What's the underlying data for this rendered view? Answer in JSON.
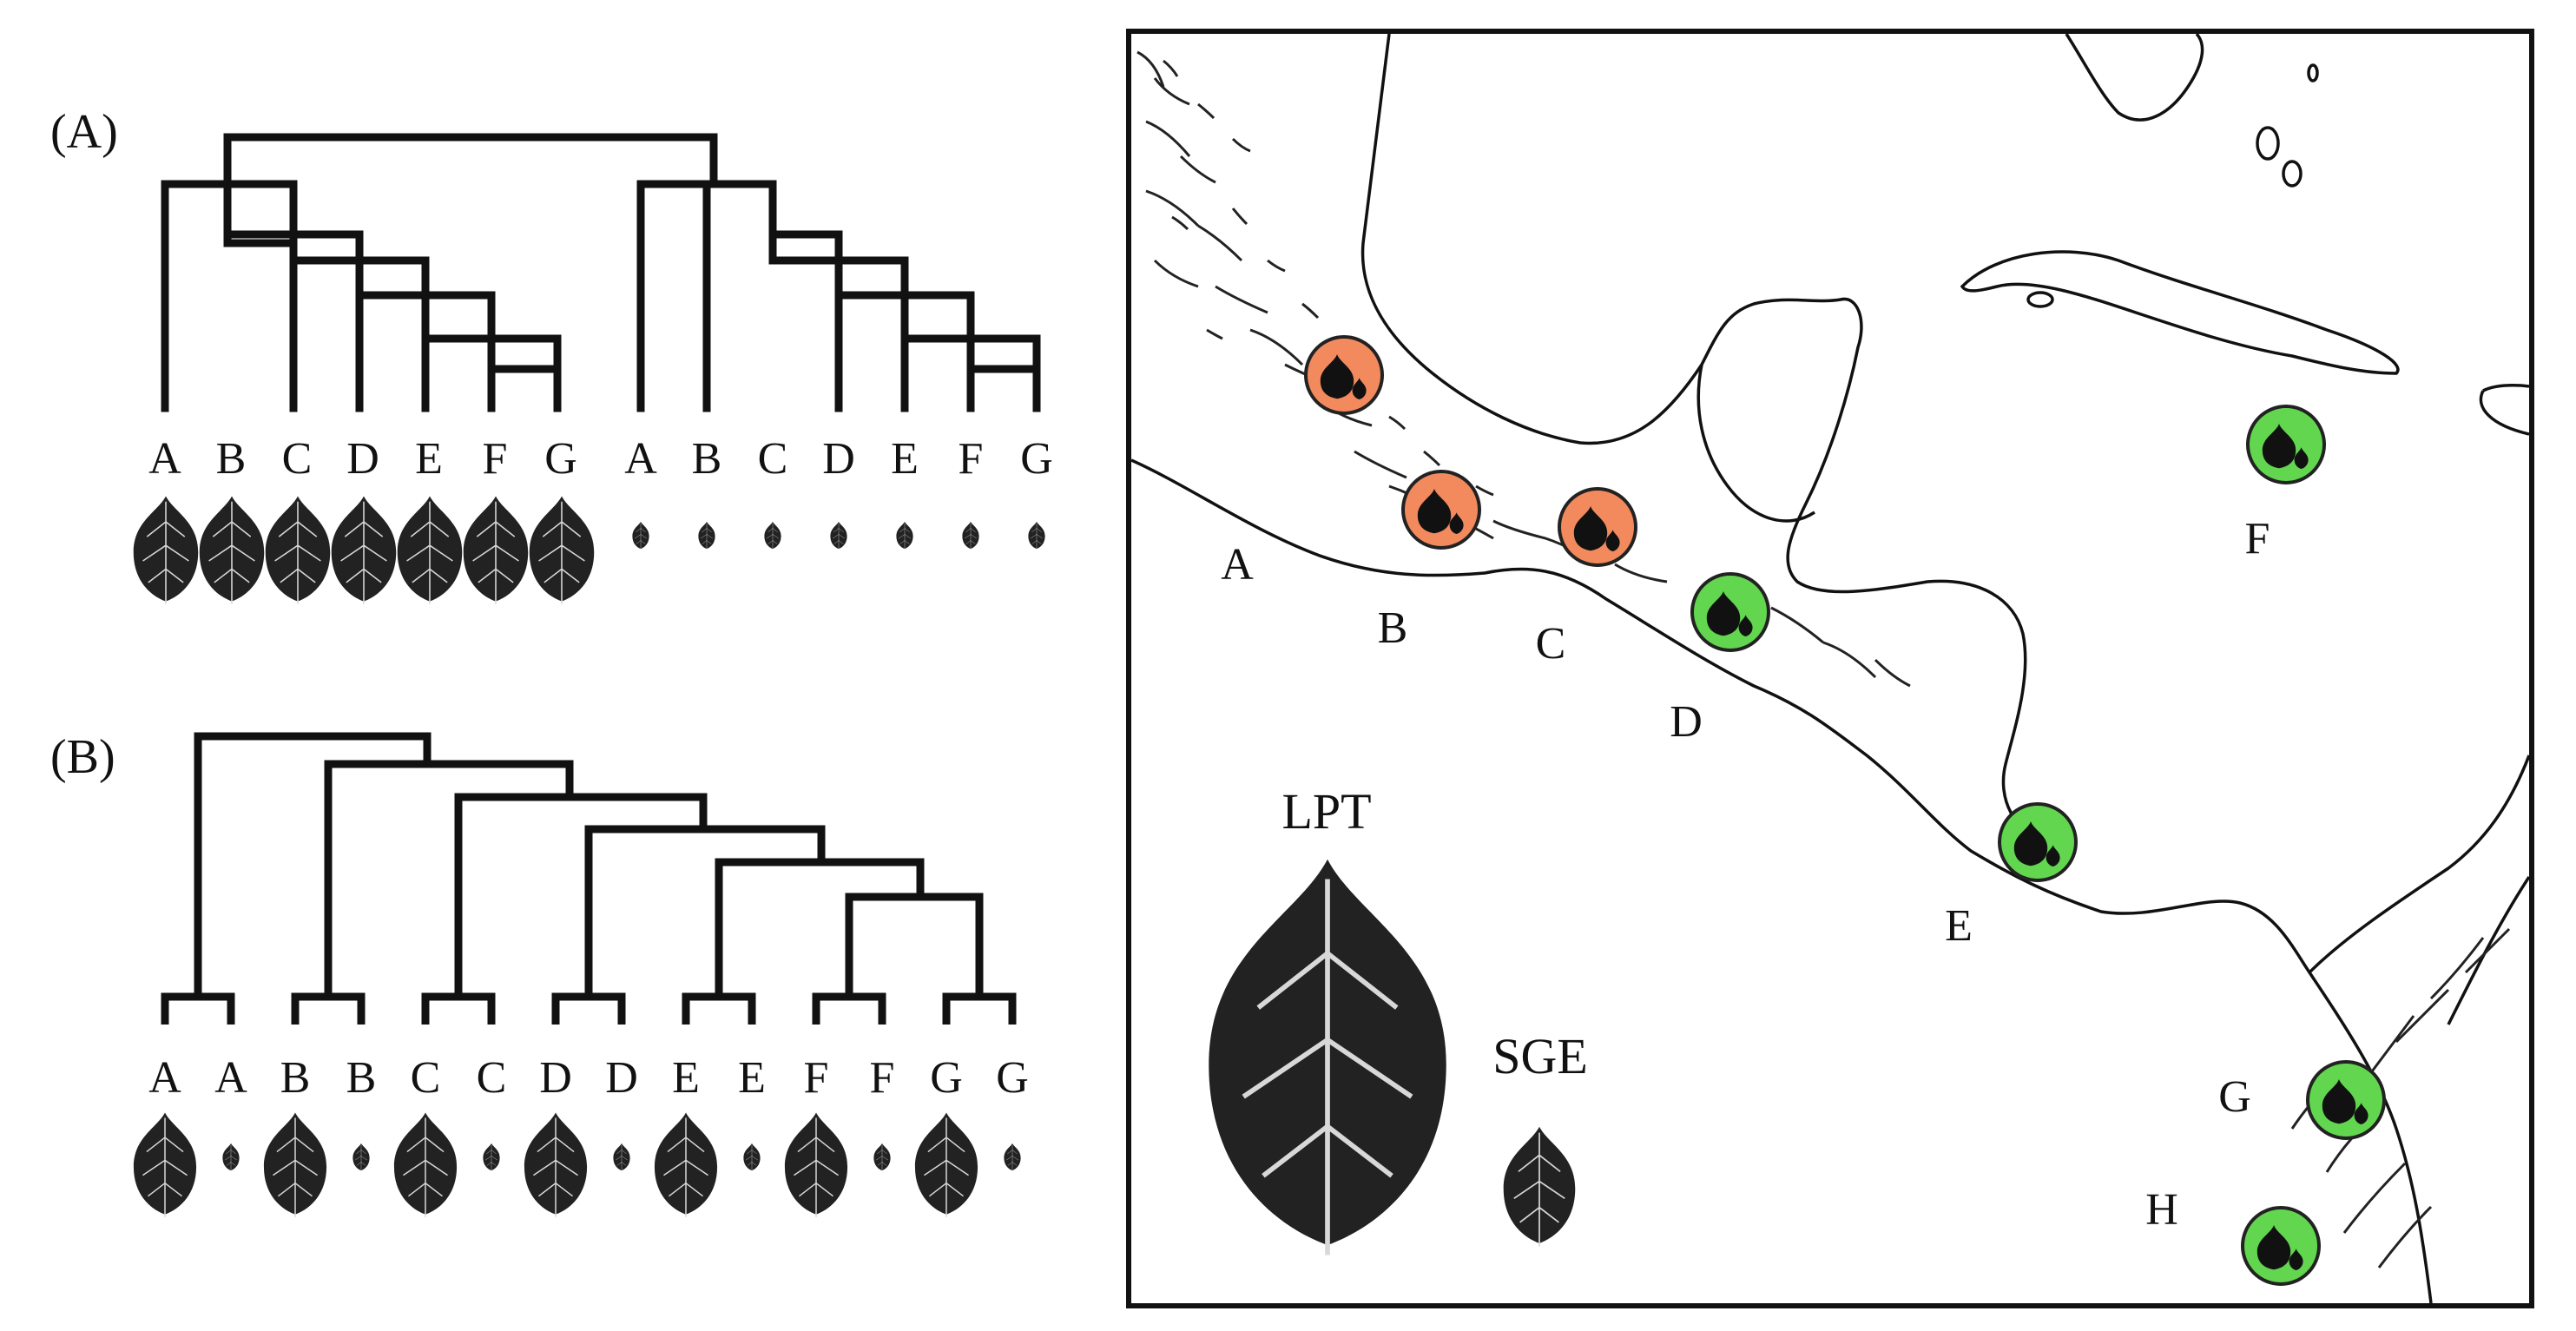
{
  "panel_a": {
    "tag": "(A)",
    "tips_left": [
      "A",
      "B",
      "C",
      "D",
      "E",
      "F",
      "G"
    ],
    "tips_right": [
      "A",
      "B",
      "C",
      "D",
      "E",
      "F",
      "G"
    ]
  },
  "panel_b": {
    "tag": "(B)",
    "tips": [
      "A",
      "A",
      "B",
      "B",
      "C",
      "C",
      "D",
      "D",
      "E",
      "E",
      "F",
      "F",
      "G",
      "G"
    ]
  },
  "map": {
    "site_labels": [
      "A",
      "B",
      "C",
      "D",
      "E",
      "F",
      "G",
      "H"
    ],
    "legend": {
      "large_leaf": "LPT",
      "small_leaf": "SGE"
    }
  },
  "colors": {
    "orange_marker": "#f28a5e",
    "green_marker": "#62d64f",
    "ink": "#111111"
  }
}
